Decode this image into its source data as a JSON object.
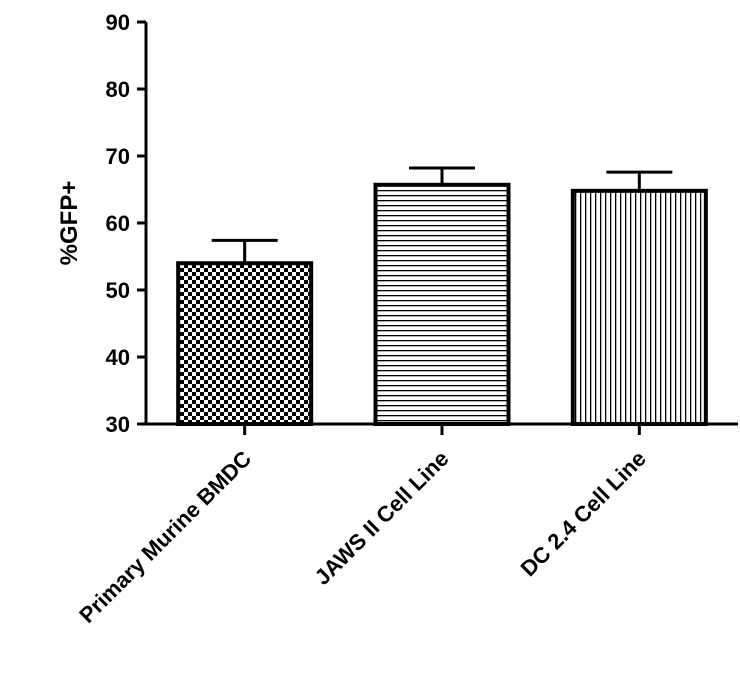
{
  "chart_data": {
    "type": "bar",
    "title": "",
    "xlabel": "",
    "ylabel": "%GFP+",
    "ylim": [
      30,
      90
    ],
    "yticks": [
      30,
      40,
      50,
      60,
      70,
      80,
      90
    ],
    "grid": false,
    "categories": [
      "Primary Murine BMDC",
      "JAWS II Cell Line",
      "DC 2.4 Cell Line"
    ],
    "values": [
      54,
      65.7,
      64.8
    ],
    "errors": [
      3.4,
      2.5,
      2.8
    ],
    "fill_patterns": [
      "checkerboard",
      "horizontal-lines",
      "vertical-lines"
    ]
  }
}
